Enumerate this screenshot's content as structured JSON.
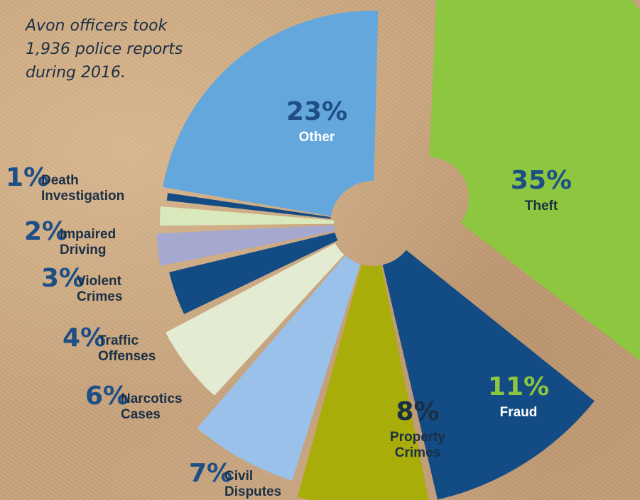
{
  "caption": "Avon officers took\n1,936 police reports\nduring 2016.",
  "colors": {
    "pct_dark_blue": "#1d4f86",
    "pct_green": "#8dc63f",
    "label_white": "#ffffff",
    "label_dark": "#1b2f45"
  },
  "chart_data": {
    "type": "pie",
    "title": "",
    "slices": [
      {
        "pct": "35%",
        "label": "Theft",
        "value": 35,
        "color": "#8dc63f"
      },
      {
        "pct": "11%",
        "label": "Fraud",
        "value": 11,
        "color": "#134b85"
      },
      {
        "pct": "8%",
        "label": "Property Crimes",
        "value": 8,
        "color": "#a9ad0a"
      },
      {
        "pct": "7%",
        "label": "Civil Disputes",
        "value": 7,
        "color": "#99c1ea"
      },
      {
        "pct": "6%",
        "label": "Narcotics Cases",
        "value": 6,
        "color": "#e3ebd2"
      },
      {
        "pct": "4%",
        "label": "Traffic Offenses",
        "value": 4,
        "color": "#134b85"
      },
      {
        "pct": "3%",
        "label": "Violent Crimes",
        "value": 3,
        "color": "#a5a9cf"
      },
      {
        "pct": "2%",
        "label": "Impaired Driving",
        "value": 2,
        "color": "#d9e9bb"
      },
      {
        "pct": "1%",
        "label": "Death Investigation",
        "value": 1,
        "color": "#134b85"
      },
      {
        "pct": "23%",
        "label": "Other",
        "value": 23,
        "color": "#64a7dc"
      }
    ]
  }
}
